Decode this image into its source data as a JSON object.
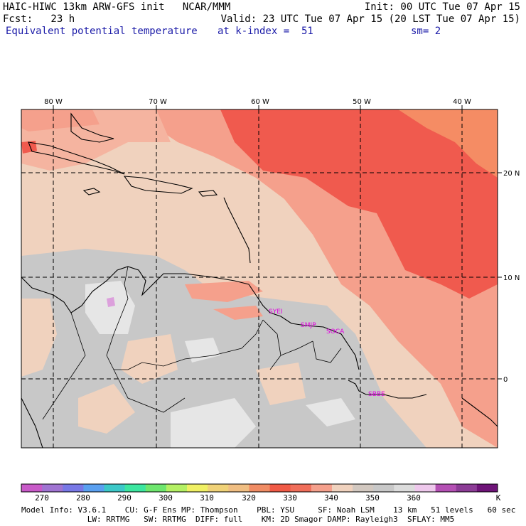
{
  "header": {
    "title_left": "HAIC-HIWC 13km ARW-GFS init   NCAR/MMM",
    "init_right": "Init: 00 UTC Tue 07 Apr 15",
    "fcst": "Fcst:   23 h",
    "valid": "Valid: 23 UTC Tue 07 Apr 15 (20 LST Tue 07 Apr 15)",
    "field_name": "Equivalent potential temperature",
    "k_index": "at k-index =  51",
    "smoothing": "sm= 2"
  },
  "map": {
    "lon_labels": [
      "80 W",
      "70 W",
      "60 W",
      "50 W",
      "40 W"
    ],
    "lat_labels": [
      "20 N",
      "10 N",
      "0"
    ],
    "station_labels": [
      "SYEI",
      "SMJP",
      "SOCA",
      "SBBE"
    ]
  },
  "colorbar": {
    "colors": [
      "#c85ac8",
      "#a074d2",
      "#7878e6",
      "#5aa0f0",
      "#3cc8c8",
      "#3ce6a0",
      "#6ee66e",
      "#b4f064",
      "#f0f064",
      "#f0d278",
      "#f0be82",
      "#f08c64",
      "#f05a46",
      "#f06e5a",
      "#f5a08c",
      "#f0d2be",
      "#d2c8c0",
      "#c8c8c8",
      "#dcdcdc",
      "#eec8ec",
      "#b450b4",
      "#8c3c96",
      "#6e1478"
    ],
    "labels": [
      "270",
      "280",
      "290",
      "300",
      "310",
      "320",
      "330",
      "340",
      "350",
      "360"
    ],
    "unit": "K"
  },
  "footer": {
    "line1": "Model Info: V3.6.1    CU: G-F Ens MP: Thompson    PBL: YSU     SF: Noah LSM    13 km   51 levels   60 sec",
    "line2": "              LW: RRTMG   SW: RRTMG  DIFF: full    KM: 2D Smagor DAMP: Rayleigh3  SFLAY: MM5"
  },
  "colors": {
    "gray": "#c8c8c8",
    "light_gray": "#e6e6e6",
    "beige": "#f0d2be",
    "salmon": "#f5a08c",
    "red": "#f05a4e",
    "orange": "#f58c64",
    "station_text": "#e000e0"
  }
}
